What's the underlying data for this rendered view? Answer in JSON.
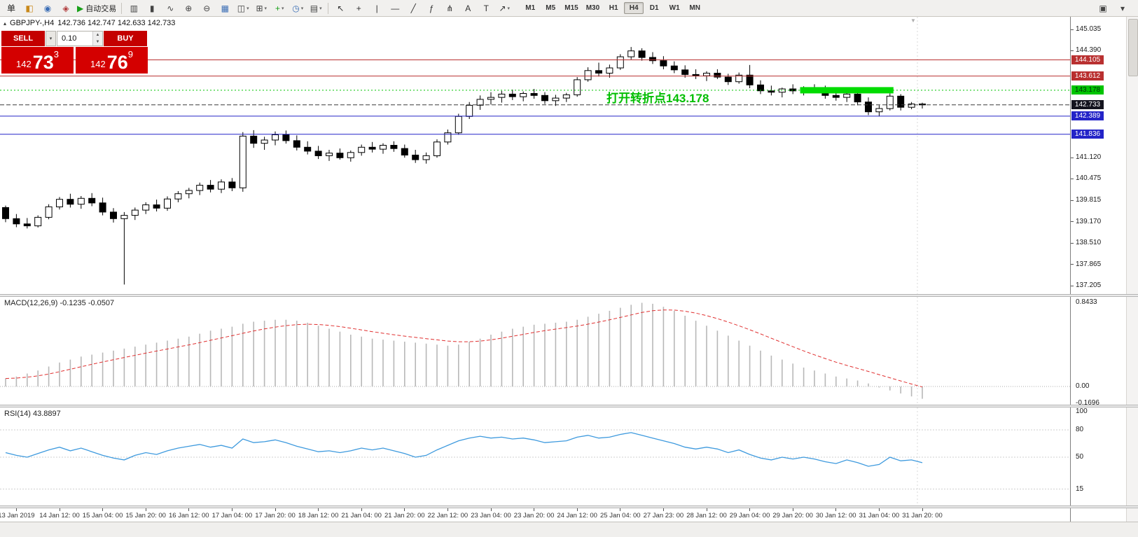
{
  "icons": {
    "symbol_marker": "▴",
    "shift_marker": "▼",
    "dropdown_caret": "▾",
    "spinner_up": "▲",
    "spinner_down": "▼"
  },
  "toolbar": {
    "groups": [
      [
        {
          "name": "new-order-button",
          "glyph": "单",
          "color": "#222222"
        },
        {
          "name": "chart-window-icon",
          "glyph": "◧",
          "color": "#c8881a"
        },
        {
          "name": "profiles-icon",
          "glyph": "◉",
          "color": "#3a6db5"
        },
        {
          "name": "market-watch-icon",
          "glyph": "◈",
          "color": "#b03a3a"
        },
        {
          "name": "auto-trading-button",
          "glyph": "▶",
          "color": "#18a018",
          "label": "自动交易"
        }
      ],
      [
        {
          "name": "bar-chart-icon",
          "glyph": "▥",
          "color": "#444444"
        },
        {
          "name": "candlestick-chart-icon",
          "glyph": "▮",
          "color": "#444444"
        },
        {
          "name": "line-chart-icon",
          "glyph": "∿",
          "color": "#444444"
        },
        {
          "name": "zoom-in-icon",
          "glyph": "⊕",
          "color": "#444444"
        },
        {
          "name": "zoom-out-icon",
          "glyph": "⊖",
          "color": "#444444"
        },
        {
          "name": "tile-windows-icon",
          "glyph": "▦",
          "color": "#3a6db5"
        },
        {
          "name": "cascade-windows-icon",
          "glyph": "◫",
          "color": "#444444",
          "dropdown": true
        },
        {
          "name": "arrange-windows-icon",
          "glyph": "⊞",
          "color": "#444444",
          "dropdown": true
        },
        {
          "name": "indicators-icon",
          "glyph": "+",
          "color": "#18a018",
          "dropdown": true
        },
        {
          "name": "periods-clock-icon",
          "glyph": "◷",
          "color": "#3a6db5",
          "dropdown": true
        },
        {
          "name": "templates-icon",
          "glyph": "▤",
          "color": "#444444",
          "dropdown": true
        }
      ],
      [
        {
          "name": "cursor-icon",
          "glyph": "↖",
          "color": "#333333"
        },
        {
          "name": "crosshair-icon",
          "glyph": "+",
          "color": "#333333"
        },
        {
          "name": "vertical-line-icon",
          "glyph": "|",
          "color": "#333333"
        },
        {
          "name": "horizontal-line-icon",
          "glyph": "—",
          "color": "#333333"
        },
        {
          "name": "trendline-icon",
          "glyph": "╱",
          "color": "#333333"
        },
        {
          "name": "fibonacci-icon",
          "glyph": "ƒ",
          "color": "#333333"
        },
        {
          "name": "pitchfork-icon",
          "glyph": "⋔",
          "color": "#333333"
        },
        {
          "name": "text-icon",
          "glyph": "A",
          "color": "#333333"
        },
        {
          "name": "text-label-icon",
          "glyph": "T",
          "color": "#333333"
        },
        {
          "name": "arrow-tool-icon",
          "glyph": "↗",
          "color": "#333333",
          "dropdown": true
        }
      ]
    ],
    "timeframes": [
      "M1",
      "M5",
      "M15",
      "M30",
      "H1",
      "H4",
      "D1",
      "W1",
      "MN"
    ],
    "active_timeframe": "H4",
    "right_icons": [
      {
        "name": "new-window-icon",
        "glyph": "▣",
        "color": "#444444"
      },
      {
        "name": "window-menu-icon",
        "glyph": "▾",
        "color": "#444444"
      }
    ]
  },
  "chart_header": {
    "symbol_period": "GBPJPY-,H4",
    "ohlc": "142.736 142.747 142.633 142.733"
  },
  "trade_panel": {
    "sell_label": "SELL",
    "buy_label": "BUY",
    "volume": "0.10",
    "sell_price": {
      "main": "142",
      "big": "73",
      "sup": "3"
    },
    "buy_price": {
      "main": "142",
      "big": "76",
      "sup": "9"
    },
    "colors": {
      "button": "#C40000",
      "price_box": "#D40000"
    }
  },
  "annotation": {
    "text": "打开转折点143.178",
    "color": "#00BE00"
  },
  "indicators": {
    "macd_label": "MACD(12,26,9) -0.1235 -0.0507",
    "rsi_label": "RSI(14) 43.8897"
  },
  "chart_data": {
    "type": "candlestick",
    "symbol": "GBPJPY-",
    "period": "H4",
    "ylim": [
      136.96,
      145.42
    ],
    "time_labels": [
      "13 Jan 2019",
      "14 Jan 12: 00",
      "15 Jan 04: 00",
      "15 Jan 20: 00",
      "16 Jan 12: 00",
      "17 Jan 04: 00",
      "17 Jan 20: 00",
      "18 Jan 12: 00",
      "21 Jan 04: 00",
      "21 Jan 20: 00",
      "22 Jan 12: 00",
      "23 Jan 04: 00",
      "23 Jan 20: 00",
      "24 Jan 12: 00",
      "25 Jan 04: 00",
      "27 Jan 23: 00",
      "28 Jan 12: 00",
      "29 Jan 04: 00",
      "29 Jan 20: 00",
      "30 Jan 12: 00",
      "31 Jan 04: 00",
      "31 Jan 20: 00"
    ],
    "price_axis_labels": [
      "145.035",
      "144.390",
      "141.120",
      "140.475",
      "139.815",
      "139.170",
      "138.510",
      "137.865",
      "137.205"
    ],
    "price_lines": [
      {
        "price": 144.105,
        "label": "144.105",
        "color": "#B93030",
        "style": "solid",
        "text_color": "#ffffff"
      },
      {
        "price": 143.612,
        "label": "143.612",
        "color": "#B93030",
        "style": "solid",
        "text_color": "#ffffff"
      },
      {
        "price": 143.178,
        "label": "143.178",
        "color": "#00C400",
        "style": "dot",
        "text_color": "#03300a"
      },
      {
        "price": 142.733,
        "label": "142.733",
        "color": "#3a3a3a",
        "box_color": "#14141e",
        "style": "dash",
        "text_color": "#ffffff"
      },
      {
        "price": 142.389,
        "label": "142.389",
        "color": "#2424C8",
        "style": "solid",
        "text_color": "#ffffff"
      },
      {
        "price": 141.836,
        "label": "141.836",
        "color": "#2424C8",
        "style": "solid",
        "text_color": "#ffffff"
      }
    ],
    "highlight_zone": {
      "start_index": 74,
      "end_index": 82,
      "price": 143.178,
      "color": "#00DC00"
    },
    "candles": [
      [
        139.6,
        139.66,
        139.15,
        139.26
      ],
      [
        139.26,
        139.4,
        139.0,
        139.1
      ],
      [
        139.1,
        139.28,
        138.96,
        139.04
      ],
      [
        139.04,
        139.36,
        138.99,
        139.3
      ],
      [
        139.3,
        139.7,
        139.24,
        139.62
      ],
      [
        139.62,
        139.92,
        139.54,
        139.85
      ],
      [
        139.85,
        140.02,
        139.6,
        139.7
      ],
      [
        139.7,
        139.95,
        139.56,
        139.88
      ],
      [
        139.88,
        140.04,
        139.64,
        139.74
      ],
      [
        139.74,
        139.9,
        139.36,
        139.46
      ],
      [
        139.46,
        139.58,
        139.14,
        139.26
      ],
      [
        139.26,
        139.46,
        137.25,
        139.36
      ],
      [
        139.36,
        139.6,
        139.22,
        139.52
      ],
      [
        139.52,
        139.76,
        139.4,
        139.68
      ],
      [
        139.68,
        139.84,
        139.48,
        139.58
      ],
      [
        139.58,
        139.94,
        139.5,
        139.86
      ],
      [
        139.86,
        140.1,
        139.76,
        140.02
      ],
      [
        140.02,
        140.2,
        139.88,
        140.12
      ],
      [
        140.12,
        140.36,
        139.98,
        140.28
      ],
      [
        140.28,
        140.44,
        140.06,
        140.16
      ],
      [
        140.16,
        140.46,
        140.04,
        140.38
      ],
      [
        140.38,
        140.5,
        140.1,
        140.2
      ],
      [
        140.2,
        141.9,
        140.08,
        141.78
      ],
      [
        141.78,
        141.96,
        141.42,
        141.56
      ],
      [
        141.56,
        141.76,
        141.36,
        141.66
      ],
      [
        141.66,
        141.92,
        141.5,
        141.82
      ],
      [
        141.82,
        141.95,
        141.55,
        141.64
      ],
      [
        141.64,
        141.8,
        141.34,
        141.44
      ],
      [
        141.44,
        141.62,
        141.22,
        141.32
      ],
      [
        141.32,
        141.48,
        141.08,
        141.18
      ],
      [
        141.18,
        141.36,
        141.02,
        141.26
      ],
      [
        141.26,
        141.4,
        141.06,
        141.12
      ],
      [
        141.12,
        141.34,
        141.0,
        141.28
      ],
      [
        141.28,
        141.52,
        141.18,
        141.44
      ],
      [
        141.44,
        141.6,
        141.28,
        141.38
      ],
      [
        141.38,
        141.56,
        141.24,
        141.5
      ],
      [
        141.5,
        141.62,
        141.3,
        141.4
      ],
      [
        141.4,
        141.52,
        141.12,
        141.2
      ],
      [
        141.2,
        141.36,
        140.96,
        141.06
      ],
      [
        141.06,
        141.28,
        140.94,
        141.18
      ],
      [
        141.18,
        141.68,
        141.12,
        141.6
      ],
      [
        141.6,
        141.98,
        141.52,
        141.88
      ],
      [
        141.88,
        142.46,
        141.82,
        142.38
      ],
      [
        142.38,
        142.82,
        142.3,
        142.72
      ],
      [
        142.72,
        143.02,
        142.58,
        142.9
      ],
      [
        142.9,
        143.12,
        142.74,
        142.96
      ],
      [
        142.96,
        143.16,
        142.8,
        143.06
      ],
      [
        143.06,
        143.2,
        142.88,
        142.98
      ],
      [
        142.98,
        143.14,
        142.84,
        143.08
      ],
      [
        143.08,
        143.22,
        142.92,
        143.02
      ],
      [
        143.02,
        143.12,
        142.76,
        142.86
      ],
      [
        142.86,
        143.04,
        142.7,
        142.94
      ],
      [
        142.94,
        143.1,
        142.82,
        143.04
      ],
      [
        143.04,
        143.58,
        142.98,
        143.5
      ],
      [
        143.5,
        143.88,
        143.44,
        143.78
      ],
      [
        143.78,
        144.02,
        143.6,
        143.7
      ],
      [
        143.7,
        143.96,
        143.56,
        143.86
      ],
      [
        143.86,
        144.28,
        143.8,
        144.2
      ],
      [
        144.2,
        144.5,
        144.12,
        144.38
      ],
      [
        144.38,
        144.46,
        144.08,
        144.18
      ],
      [
        144.18,
        144.34,
        143.98,
        144.08
      ],
      [
        144.08,
        144.22,
        143.82,
        143.92
      ],
      [
        143.92,
        144.06,
        143.7,
        143.8
      ],
      [
        143.8,
        143.94,
        143.56,
        143.66
      ],
      [
        143.66,
        143.82,
        143.52,
        143.62
      ],
      [
        143.62,
        143.76,
        143.46,
        143.7
      ],
      [
        143.7,
        143.82,
        143.52,
        143.58
      ],
      [
        143.58,
        143.68,
        143.34,
        143.44
      ],
      [
        143.44,
        143.72,
        143.38,
        143.64
      ],
      [
        143.64,
        143.95,
        143.24,
        143.34
      ],
      [
        143.34,
        143.48,
        143.06,
        143.16
      ],
      [
        143.16,
        143.32,
        143.02,
        143.12
      ],
      [
        143.12,
        143.26,
        142.96,
        143.22
      ],
      [
        143.22,
        143.36,
        143.06,
        143.16
      ],
      [
        143.16,
        143.3,
        143.02,
        143.26
      ],
      [
        143.26,
        143.36,
        143.12,
        143.2
      ],
      [
        143.2,
        143.32,
        142.92,
        143.02
      ],
      [
        143.02,
        143.16,
        142.86,
        142.96
      ],
      [
        142.96,
        143.12,
        142.82,
        143.06
      ],
      [
        143.06,
        143.17,
        142.72,
        142.82
      ],
      [
        142.82,
        142.96,
        142.42,
        142.52
      ],
      [
        142.52,
        142.72,
        142.38,
        142.62
      ],
      [
        142.62,
        143.08,
        142.56,
        143.0
      ],
      [
        143.0,
        143.06,
        142.56,
        142.66
      ],
      [
        142.66,
        142.82,
        142.6,
        142.76
      ],
      [
        142.76,
        142.8,
        142.62,
        142.733
      ]
    ],
    "macd": {
      "name": "MACD(12,26,9)",
      "value": -0.1235,
      "signal": -0.0507,
      "axis_labels": [
        "0.8433",
        "0.00",
        "-0.1696"
      ],
      "bar_color": "#b8b8b8",
      "signal_color": "#E03030",
      "histogram": [
        0.08,
        0.1,
        0.13,
        0.16,
        0.2,
        0.24,
        0.27,
        0.3,
        0.32,
        0.34,
        0.36,
        0.38,
        0.4,
        0.42,
        0.44,
        0.46,
        0.48,
        0.5,
        0.53,
        0.56,
        0.58,
        0.6,
        0.63,
        0.65,
        0.66,
        0.67,
        0.67,
        0.66,
        0.64,
        0.61,
        0.58,
        0.55,
        0.52,
        0.5,
        0.48,
        0.47,
        0.46,
        0.45,
        0.44,
        0.43,
        0.42,
        0.41,
        0.42,
        0.45,
        0.48,
        0.52,
        0.55,
        0.58,
        0.6,
        0.62,
        0.63,
        0.64,
        0.65,
        0.67,
        0.7,
        0.73,
        0.76,
        0.79,
        0.82,
        0.84,
        0.83,
        0.8,
        0.76,
        0.71,
        0.66,
        0.61,
        0.56,
        0.51,
        0.46,
        0.41,
        0.36,
        0.31,
        0.27,
        0.23,
        0.19,
        0.16,
        0.13,
        0.1,
        0.08,
        0.06,
        0.03,
        -0.01,
        -0.04,
        -0.07,
        -0.1,
        -0.1235
      ]
    },
    "rsi": {
      "name": "RSI(14)",
      "value": 43.8897,
      "axis_labels": [
        "100",
        "80",
        "50",
        "15"
      ],
      "levels": [
        80,
        50,
        15
      ],
      "line_color": "#3E9ADE",
      "values": [
        55,
        52,
        50,
        54,
        58,
        61,
        57,
        60,
        56,
        52,
        49,
        47,
        52,
        55,
        53,
        57,
        60,
        62,
        64,
        61,
        63,
        60,
        70,
        66,
        67,
        69,
        66,
        62,
        59,
        56,
        57,
        55,
        57,
        60,
        58,
        60,
        57,
        54,
        50,
        52,
        58,
        63,
        68,
        71,
        73,
        71,
        72,
        70,
        71,
        69,
        66,
        67,
        68,
        72,
        74,
        71,
        72,
        75,
        77,
        74,
        71,
        68,
        65,
        61,
        59,
        61,
        59,
        55,
        58,
        53,
        49,
        47,
        50,
        48,
        50,
        48,
        45,
        43,
        47,
        44,
        40,
        42,
        50,
        46,
        47,
        43.89
      ]
    }
  }
}
